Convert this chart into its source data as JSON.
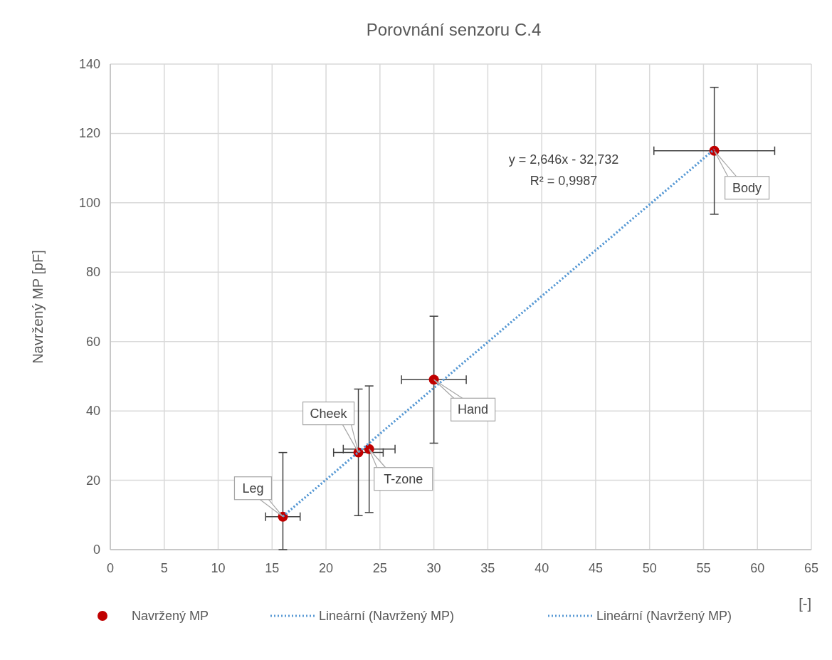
{
  "chart_data": {
    "type": "scatter",
    "title": "Porovnání senzoru C.4",
    "xlabel": "[-]",
    "ylabel": "Navržený MP [pF]",
    "xlim": [
      0,
      65
    ],
    "xticks": [
      0,
      5,
      10,
      15,
      20,
      25,
      30,
      35,
      40,
      45,
      50,
      55,
      60,
      65
    ],
    "ylim": [
      0,
      140
    ],
    "yticks": [
      0,
      20,
      40,
      60,
      80,
      100,
      120,
      140
    ],
    "grid": true,
    "legend": "bottom",
    "series": [
      {
        "name": "Navržený MP",
        "marker": "circle",
        "color": "#c00000",
        "x": [
          16,
          23,
          24,
          30,
          56
        ],
        "values": [
          9.5,
          28,
          29,
          49,
          115
        ],
        "errors": [
          [
            0,
            28
          ],
          [
            9.8,
            46.3
          ],
          [
            10.7,
            47.2
          ],
          [
            30.7,
            67.3
          ],
          [
            96.7,
            133.3
          ]
        ],
        "xerrors": [
          [
            14.4,
            17.6
          ],
          [
            20.7,
            25.3
          ],
          [
            21.6,
            26.4
          ],
          [
            27,
            33
          ],
          [
            50.4,
            61.6
          ]
        ]
      },
      {
        "name": "Lineární (Navržený MP)",
        "type": "line",
        "line_style": "dotted",
        "marker": "none",
        "color": "#5b9bd5",
        "x": [
          16,
          56
        ],
        "values": [
          9.6,
          115.4
        ]
      },
      {
        "name": "Lineární (Navržený MP)",
        "type": "line",
        "line_style": "dotted",
        "marker": "none",
        "color": "#5b9bd5",
        "x": [
          16,
          56
        ],
        "values": [
          9.6,
          115.4
        ]
      }
    ],
    "annotations": [
      {
        "text": "Leg",
        "x": 16,
        "y": 9.5
      },
      {
        "text": "Cheek",
        "x": 23,
        "y": 28
      },
      {
        "text": "T-zone",
        "x": 24,
        "y": 29
      },
      {
        "text": "Hand",
        "x": 30,
        "y": 49
      },
      {
        "text": "Body",
        "x": 56,
        "y": 115
      },
      "y = 2,646x - 32,732",
      "R² = 0,9987"
    ]
  }
}
